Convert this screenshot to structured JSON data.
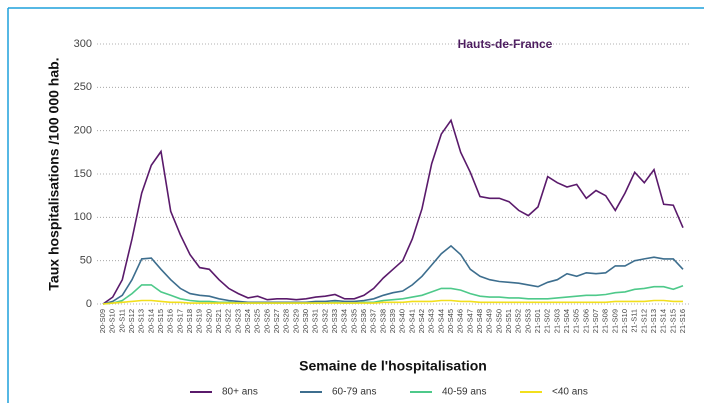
{
  "chart_data": {
    "type": "line",
    "title": "Hauts-de-France",
    "y_label": "Taux hospitalisations /100 000 hab.",
    "x_label": "Semaine de l'hospitalisation",
    "categories": [
      "20-S09",
      "20-S10",
      "20-S11",
      "20-S12",
      "20-S13",
      "20-S14",
      "20-S15",
      "20-S16",
      "20-S17",
      "20-S18",
      "20-S19",
      "20-S20",
      "20-S21",
      "20-S22",
      "20-S23",
      "20-S24",
      "20-S25",
      "20-S26",
      "20-S27",
      "20-S28",
      "20-S29",
      "20-S30",
      "20-S31",
      "20-S32",
      "20-S33",
      "20-S34",
      "20-S35",
      "20-S36",
      "20-S37",
      "20-S38",
      "20-S39",
      "20-S40",
      "20-S41",
      "20-S42",
      "20-S43",
      "20-S44",
      "20-S45",
      "20-S46",
      "20-S47",
      "20-S48",
      "20-S49",
      "20-S50",
      "20-S51",
      "20-S52",
      "20-S53",
      "21-S01",
      "21-S02",
      "21-S03",
      "21-S04",
      "21-S05",
      "21-S06",
      "21-S07",
      "21-S08",
      "21-S09",
      "21-S10",
      "21-S11",
      "21-S12",
      "21-S13",
      "21-S14",
      "21-S15",
      "21-S16"
    ],
    "series": [
      {
        "name": "80+ ans",
        "color": "#5a1a6b",
        "values": [
          0,
          8,
          28,
          75,
          128,
          160,
          176,
          107,
          80,
          57,
          42,
          40,
          28,
          18,
          12,
          7,
          9,
          5,
          6,
          6,
          5,
          6,
          8,
          9,
          11,
          6,
          6,
          10,
          18,
          30,
          40,
          50,
          75,
          110,
          162,
          196,
          212,
          175,
          152,
          124,
          122,
          122,
          118,
          108,
          102,
          112,
          147,
          140,
          135,
          138,
          122,
          131,
          125,
          108,
          128,
          152,
          140,
          155,
          115,
          114,
          88
        ]
      },
      {
        "name": "60-79 ans",
        "color": "#3d6e8e",
        "values": [
          0,
          3,
          10,
          28,
          52,
          53,
          40,
          28,
          18,
          12,
          10,
          9,
          6,
          4,
          3,
          2,
          2,
          2,
          2,
          2,
          2,
          2,
          3,
          3,
          4,
          3,
          3,
          4,
          6,
          10,
          13,
          15,
          22,
          32,
          45,
          58,
          67,
          57,
          40,
          32,
          28,
          26,
          25,
          24,
          22,
          20,
          25,
          28,
          35,
          32,
          36,
          35,
          36,
          44,
          44,
          50,
          52,
          54,
          52,
          52,
          40
        ]
      },
      {
        "name": "40-59 ans",
        "color": "#4ec98a",
        "values": [
          0,
          1,
          4,
          12,
          22,
          22,
          14,
          10,
          6,
          4,
          3,
          3,
          2,
          2,
          1,
          1,
          1,
          1,
          1,
          1,
          1,
          1,
          1,
          1,
          2,
          1,
          1,
          2,
          2,
          4,
          5,
          6,
          8,
          10,
          14,
          18,
          18,
          16,
          12,
          9,
          8,
          8,
          7,
          7,
          6,
          6,
          6,
          7,
          8,
          9,
          10,
          10,
          11,
          13,
          14,
          17,
          18,
          20,
          20,
          17,
          21
        ]
      },
      {
        "name": "<40 ans",
        "color": "#f2df1c",
        "values": [
          0,
          1,
          2,
          3,
          4,
          4,
          3,
          2,
          2,
          1,
          1,
          1,
          1,
          1,
          1,
          1,
          1,
          1,
          1,
          1,
          1,
          1,
          1,
          1,
          1,
          1,
          1,
          1,
          1,
          2,
          2,
          2,
          3,
          3,
          3,
          4,
          4,
          3,
          3,
          2,
          2,
          2,
          2,
          2,
          2,
          2,
          2,
          2,
          2,
          2,
          2,
          2,
          2,
          3,
          3,
          3,
          3,
          4,
          4,
          3,
          3
        ]
      }
    ],
    "ylim": [
      0,
      300
    ],
    "yticks": [
      0,
      50,
      100,
      150,
      200,
      250,
      300
    ],
    "grid": true
  }
}
